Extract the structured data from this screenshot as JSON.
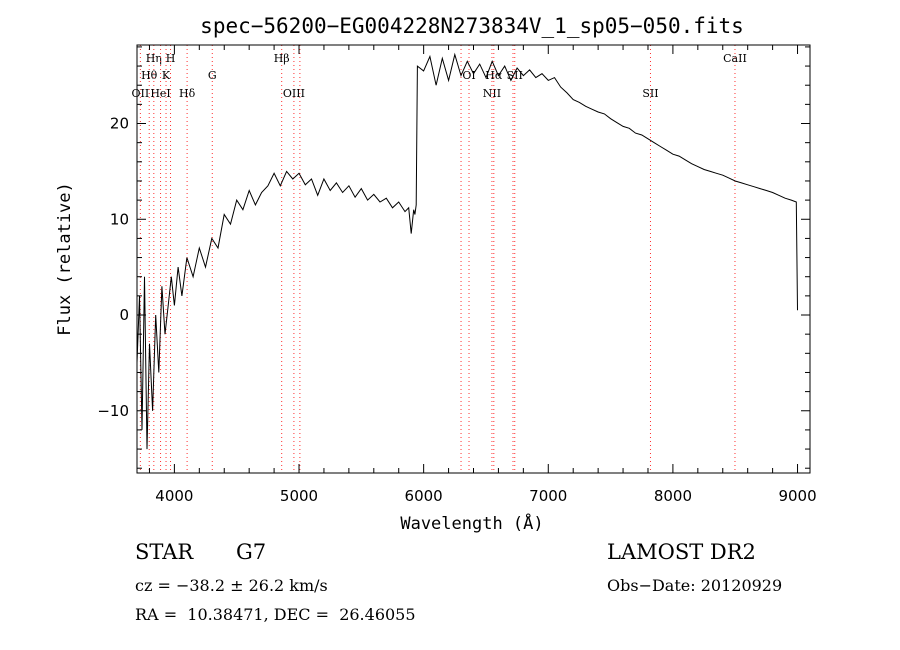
{
  "chart_data": {
    "type": "line",
    "title": "spec−56200−EG004228N273834V_1_sp05−050.fits",
    "xlabel": "Wavelength (Å)",
    "ylabel": "Flux (relative)",
    "xlim": [
      3700,
      9100
    ],
    "ylim": [
      -16.5,
      28.2
    ],
    "x_ticks": [
      4000,
      5000,
      6000,
      7000,
      8000,
      9000
    ],
    "x_tick_labels": [
      "4000",
      "5000",
      "6000",
      "7000",
      "8000",
      "9000"
    ],
    "y_ticks": [
      -10,
      0,
      10,
      20
    ],
    "y_tick_labels": [
      "−10",
      "0",
      "10",
      "20"
    ],
    "grid": false,
    "line_color": "#000000",
    "marker_line_color": "#ff3030",
    "series": [
      {
        "x": [
          3700,
          3720,
          3740,
          3760,
          3780,
          3800,
          3825,
          3850,
          3875,
          3900,
          3925,
          3950,
          3975,
          4000,
          4030,
          4060,
          4100,
          4150,
          4200,
          4250,
          4300,
          4350,
          4400,
          4450,
          4500,
          4550,
          4600,
          4650,
          4700,
          4750,
          4800,
          4850,
          4900,
          4950,
          5000,
          5050,
          5100,
          5150,
          5200,
          5250,
          5300,
          5350,
          5400,
          5450,
          5500,
          5550,
          5600,
          5650,
          5700,
          5750,
          5800,
          5850,
          5880,
          5900,
          5920,
          5930,
          5940,
          5950,
          6000,
          6050,
          6100,
          6150,
          6200,
          6250,
          6300,
          6350,
          6400,
          6450,
          6500,
          6550,
          6600,
          6650,
          6700,
          6750,
          6800,
          6850,
          6900,
          6950,
          7000,
          7050,
          7100,
          7150,
          7200,
          7250,
          7300,
          7350,
          7400,
          7450,
          7500,
          7550,
          7600,
          7650,
          7700,
          7750,
          7800,
          7850,
          7900,
          7950,
          8000,
          8050,
          8100,
          8150,
          8200,
          8250,
          8300,
          8350,
          8400,
          8450,
          8500,
          8550,
          8600,
          8650,
          8700,
          8750,
          8800,
          8850,
          8900,
          8950,
          8990,
          9000
        ],
        "y": [
          -5,
          2,
          -12,
          4,
          -14,
          -3,
          -10,
          0,
          -6,
          3,
          -2,
          1,
          4,
          1,
          5,
          2,
          6,
          4,
          7,
          5,
          8,
          7,
          10.5,
          9.5,
          12,
          11,
          13,
          11.5,
          12.8,
          13.5,
          14.8,
          13.5,
          15,
          14.2,
          14.8,
          13.6,
          14.2,
          12.5,
          14.2,
          13,
          13.8,
          12.8,
          13.5,
          12.3,
          13.2,
          12,
          12.6,
          11.8,
          12.2,
          11.2,
          11.8,
          10.8,
          11.2,
          8.5,
          11,
          10.5,
          11.5,
          26,
          25.5,
          27,
          24,
          26.8,
          24.5,
          27.2,
          25,
          26.5,
          25.2,
          26.2,
          24.8,
          26.5,
          25,
          26,
          24.5,
          25.8,
          25,
          25.6,
          24.8,
          25.2,
          24.5,
          24.8,
          23.8,
          23.2,
          22.5,
          22.2,
          21.8,
          21.5,
          21.2,
          21,
          20.5,
          20.1,
          19.7,
          19.5,
          19,
          18.8,
          18.4,
          18,
          17.6,
          17.2,
          16.8,
          16.6,
          16.2,
          15.8,
          15.5,
          15.2,
          15,
          14.8,
          14.6,
          14.3,
          14,
          13.8,
          13.6,
          13.4,
          13.2,
          13,
          12.8,
          12.5,
          12.2,
          12,
          11.8,
          0.5
        ]
      }
    ],
    "line_markers": [
      {
        "wavelength": 3727,
        "label": "OII",
        "row": 2
      },
      {
        "wavelength": 3798,
        "label": "Hθ",
        "row": 1
      },
      {
        "wavelength": 3835,
        "label": "Hη",
        "row": 0
      },
      {
        "wavelength": 3889,
        "label": "HeI",
        "row": 2
      },
      {
        "wavelength": 3933,
        "label": "K",
        "row": 1
      },
      {
        "wavelength": 3969,
        "label": "H",
        "row": 0
      },
      {
        "wavelength": 4102,
        "label": "Hδ",
        "row": 2
      },
      {
        "wavelength": 4304,
        "label": "G",
        "row": 1
      },
      {
        "wavelength": 4861,
        "label": "Hβ",
        "row": 0
      },
      {
        "wavelength": 4959,
        "label": "OIII",
        "row": 2
      },
      {
        "wavelength": 5007,
        "label": "",
        "row": 2
      },
      {
        "wavelength": 6300,
        "label": "",
        "row": 1
      },
      {
        "wavelength": 6364,
        "label": "OI",
        "row": 1
      },
      {
        "wavelength": 6548,
        "label": "NII",
        "row": 2
      },
      {
        "wavelength": 6563,
        "label": "Hα",
        "row": 1
      },
      {
        "wavelength": 6717,
        "label": "",
        "row": 1
      },
      {
        "wavelength": 6731,
        "label": "SII",
        "row": 1
      },
      {
        "wavelength": 7820,
        "label": "SII",
        "row": 2
      },
      {
        "wavelength": 8498,
        "label": "CaII",
        "row": 0
      }
    ]
  },
  "info": {
    "object_class": "STAR",
    "subclass": "G7",
    "survey": "LAMOST DR2",
    "cz": "cz = −38.2 ± 26.2 km/s",
    "obs_date": "Obs−Date: 20120929",
    "radec": "RA =  10.38471, DEC =  26.46055"
  }
}
